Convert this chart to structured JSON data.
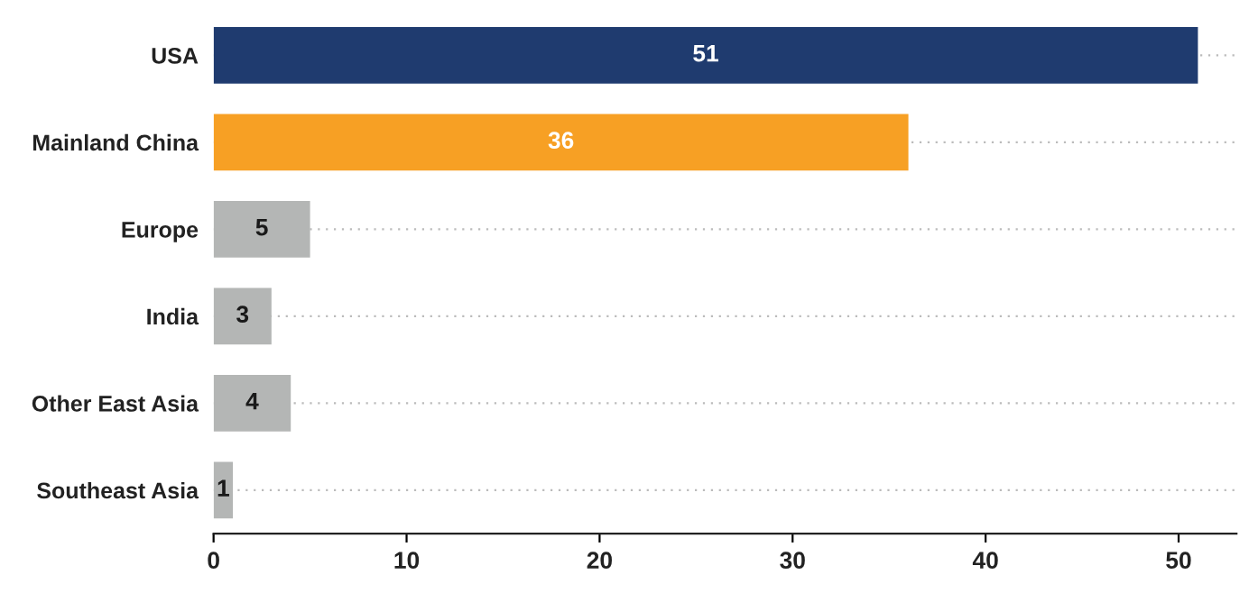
{
  "chart_data": {
    "type": "bar",
    "orientation": "horizontal",
    "categories": [
      "USA",
      "Mainland China",
      "Europe",
      "India",
      "Other East Asia",
      "Southeast Asia"
    ],
    "values": [
      51,
      36,
      5,
      3,
      4,
      1
    ],
    "colors": [
      "#1f3b6f",
      "#f7a024",
      "#b4b6b5",
      "#b4b6b5",
      "#b4b6b5",
      "#b4b6b5"
    ],
    "xlim": [
      0,
      53
    ],
    "xticks": [
      0,
      10,
      20,
      30,
      40,
      50
    ],
    "data_labels": true,
    "grid": "y"
  }
}
